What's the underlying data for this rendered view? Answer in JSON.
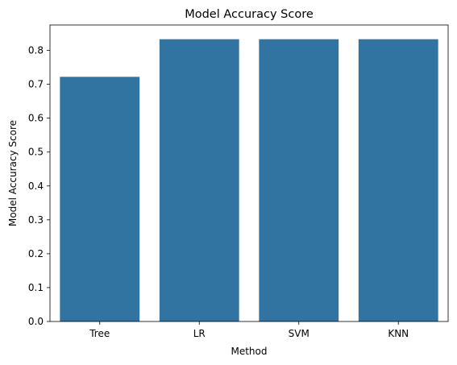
{
  "chart_data": {
    "type": "bar",
    "title": "Model Accuracy Score",
    "xlabel": "Method",
    "ylabel": "Model Accuracy Score",
    "categories": [
      "Tree",
      "LR",
      "SVM",
      "KNN"
    ],
    "values": [
      0.722,
      0.833,
      0.833,
      0.833
    ],
    "ylim": [
      0,
      0.875
    ],
    "yticks": [
      0.0,
      0.1,
      0.2,
      0.3,
      0.4,
      0.5,
      0.6,
      0.7,
      0.8
    ],
    "ytick_labels": [
      "0.0",
      "0.1",
      "0.2",
      "0.3",
      "0.4",
      "0.5",
      "0.6",
      "0.7",
      "0.8"
    ],
    "bar_color": "#3274a1",
    "grid": false,
    "legend": "none"
  }
}
